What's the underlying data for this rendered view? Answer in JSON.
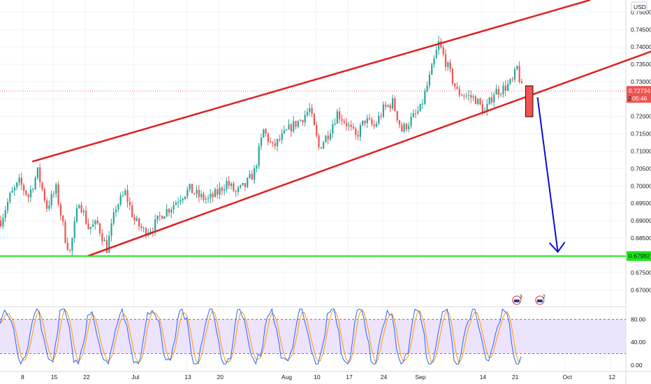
{
  "chart_data": [
    {
      "type": "candlestick",
      "currency_label": "USD",
      "ylim": [
        0.6655,
        0.7535
      ],
      "y_ticks": [
        "0.75000",
        "0.74500",
        "0.74000",
        "0.73500",
        "0.73000",
        "0.72500",
        "0.72000",
        "0.71500",
        "0.71000",
        "0.70500",
        "0.70000",
        "0.69500",
        "0.69000",
        "0.68500",
        "0.68000",
        "0.67500",
        "0.67000"
      ],
      "x_ticks": [
        "8",
        "15",
        "22",
        "Jul",
        "13",
        "20",
        "Aug",
        "10",
        "17",
        "24",
        "Sep",
        "14",
        "21",
        "Oct",
        "12"
      ],
      "price_path": [
        {
          "t": 0,
          "v": 0.69
        },
        {
          "t": 2,
          "v": 0.697
        },
        {
          "t": 4,
          "v": 0.701
        },
        {
          "t": 6,
          "v": 0.697
        },
        {
          "t": 8,
          "v": 0.704
        },
        {
          "t": 10,
          "v": 0.694
        },
        {
          "t": 12,
          "v": 0.699
        },
        {
          "t": 14,
          "v": 0.685
        },
        {
          "t": 15,
          "v": 0.681
        },
        {
          "t": 17,
          "v": 0.696
        },
        {
          "t": 19,
          "v": 0.688
        },
        {
          "t": 21,
          "v": 0.689
        },
        {
          "t": 23,
          "v": 0.682
        },
        {
          "t": 25,
          "v": 0.694
        },
        {
          "t": 27,
          "v": 0.698
        },
        {
          "t": 29,
          "v": 0.69
        },
        {
          "t": 31,
          "v": 0.687
        },
        {
          "t": 33,
          "v": 0.688
        },
        {
          "t": 35,
          "v": 0.692
        },
        {
          "t": 37,
          "v": 0.694
        },
        {
          "t": 39,
          "v": 0.697
        },
        {
          "t": 41,
          "v": 0.699
        },
        {
          "t": 43,
          "v": 0.697
        },
        {
          "t": 45,
          "v": 0.696
        },
        {
          "t": 47,
          "v": 0.698
        },
        {
          "t": 49,
          "v": 0.701
        },
        {
          "t": 51,
          "v": 0.698
        },
        {
          "t": 53,
          "v": 0.7
        },
        {
          "t": 55,
          "v": 0.704
        },
        {
          "t": 57,
          "v": 0.716
        },
        {
          "t": 59,
          "v": 0.711
        },
        {
          "t": 61,
          "v": 0.714
        },
        {
          "t": 63,
          "v": 0.717
        },
        {
          "t": 65,
          "v": 0.719
        },
        {
          "t": 67,
          "v": 0.722
        },
        {
          "t": 69,
          "v": 0.711
        },
        {
          "t": 71,
          "v": 0.715
        },
        {
          "t": 73,
          "v": 0.721
        },
        {
          "t": 75,
          "v": 0.718
        },
        {
          "t": 77,
          "v": 0.714
        },
        {
          "t": 79,
          "v": 0.719
        },
        {
          "t": 81,
          "v": 0.717
        },
        {
          "t": 83,
          "v": 0.722
        },
        {
          "t": 85,
          "v": 0.724
        },
        {
          "t": 87,
          "v": 0.716
        },
        {
          "t": 89,
          "v": 0.719
        },
        {
          "t": 91,
          "v": 0.722
        },
        {
          "t": 93,
          "v": 0.731
        },
        {
          "t": 95,
          "v": 0.741
        },
        {
          "t": 97,
          "v": 0.734
        },
        {
          "t": 99,
          "v": 0.727
        },
        {
          "t": 101,
          "v": 0.726
        },
        {
          "t": 103,
          "v": 0.725
        },
        {
          "t": 105,
          "v": 0.721
        },
        {
          "t": 107,
          "v": 0.727
        },
        {
          "t": 109,
          "v": 0.728
        },
        {
          "t": 111,
          "v": 0.73
        },
        {
          "t": 112,
          "v": 0.734
        },
        {
          "t": 113,
          "v": 0.728
        }
      ],
      "channel": {
        "upper": {
          "from": {
            "t": 7,
            "v": 0.707
          },
          "to": {
            "t": 128,
            "v": 0.7535
          }
        },
        "lower": {
          "from": {
            "t": 19,
            "v": 0.6798
          },
          "to": {
            "t": 145,
            "v": 0.7405
          }
        },
        "color": "#e01f1f"
      },
      "support": {
        "value": 0.67982,
        "label": "0.67982",
        "color": "#19e619"
      },
      "last_price": {
        "value": 0.72734,
        "label": "0.72734",
        "timer": "05:46",
        "color": "#ef5350"
      },
      "projection_box": {
        "t0": 114,
        "t1": 115.6,
        "v_top": 0.7288,
        "v_bottom": 0.7199,
        "color": "#ef5350"
      },
      "projection_arrow": {
        "from": {
          "t": 116.6,
          "v": 0.7255
        },
        "to": {
          "t": 121,
          "v": 0.681
        },
        "color": "#0b0bd4"
      },
      "partial_tick_label": "2",
      "event_flags": [
        {
          "t": 113,
          "count": "3"
        },
        {
          "t": 118,
          "count": "2"
        }
      ],
      "colors": {
        "up": "#26a69a",
        "down": "#ef5350",
        "grid": "#f0f3fa"
      }
    },
    {
      "type": "stochastic_rsi",
      "ylim": [
        -10,
        100
      ],
      "y_ticks": [
        "80.00",
        "40.00",
        "0.00"
      ],
      "band": [
        20,
        80
      ],
      "k_color": "#2962ff",
      "d_color": "#ff9800",
      "band_fill": "#e6d9fc"
    }
  ]
}
